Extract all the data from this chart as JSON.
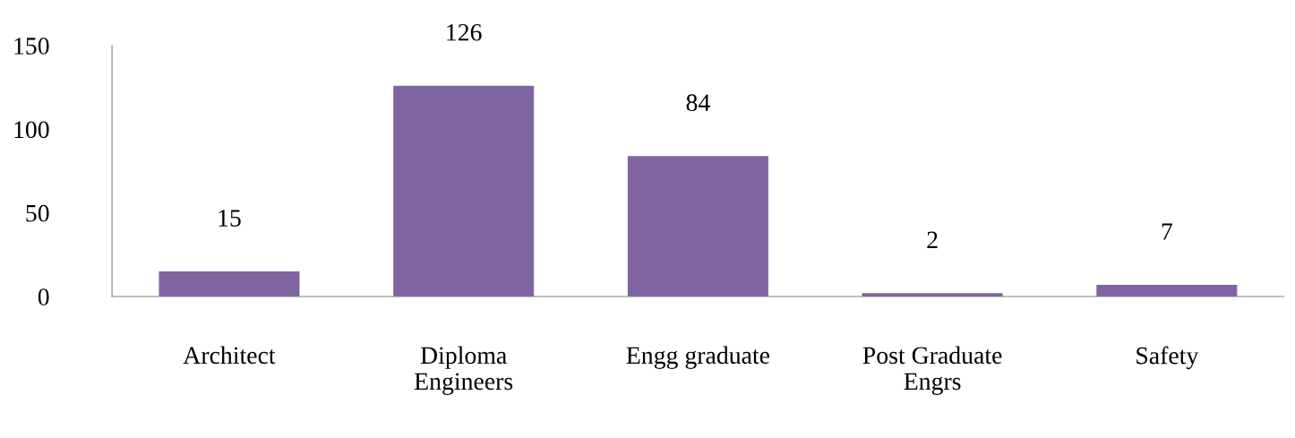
{
  "chart_data": {
    "type": "bar",
    "categories": [
      "Architect",
      "Diploma\nEngineers",
      "Engg graduate",
      "Post Graduate\nEngrs",
      "Safety"
    ],
    "values": [
      15,
      126,
      84,
      2,
      7
    ],
    "color": "#8064a2",
    "ylim": [
      0,
      150
    ],
    "yticks": [
      0,
      50,
      100,
      150
    ],
    "data_labels": true,
    "grid": false,
    "legend": false
  }
}
